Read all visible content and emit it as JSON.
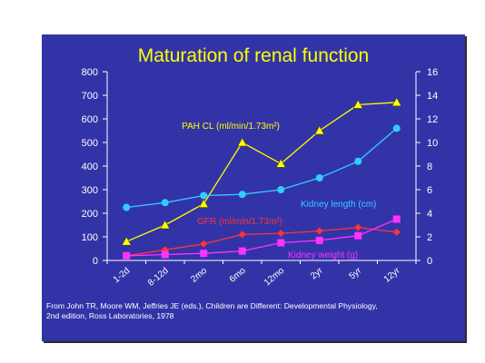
{
  "slide_bg": "#3333a8",
  "title": "Maturation of renal function",
  "credit": {
    "line1": "From John TR, Moore WM, Jeffries JE (eds.), Children are Different: Developmental Physiology,",
    "line2": "2nd edition, Ross Laboratories, 1978"
  },
  "chart_data": {
    "type": "line",
    "title": "Maturation of renal function",
    "categories": [
      "1-2d",
      "8-12d",
      "2mo",
      "6mo",
      "12mo",
      "2yr",
      "5yr",
      "12yr"
    ],
    "y_left": {
      "ylim": [
        0,
        800
      ],
      "ticks": [
        "0",
        "100",
        "200",
        "300",
        "400",
        "500",
        "600",
        "700",
        "800"
      ]
    },
    "y_right": {
      "ylim": [
        0,
        16
      ],
      "ticks": [
        "0",
        "2",
        "4",
        "6",
        "8",
        "10",
        "12",
        "14",
        "16"
      ]
    },
    "grid": false,
    "series": [
      {
        "name": "PAH CL (ml/min/1.73m²)",
        "axis": "left",
        "color": "#ffff00",
        "marker": "triangle",
        "values": [
          80,
          150,
          240,
          500,
          410,
          550,
          660,
          670
        ]
      },
      {
        "name": "Kidney length (cm)",
        "axis": "right",
        "color": "#33ccff",
        "marker": "circle",
        "values": [
          4.5,
          4.9,
          5.5,
          5.6,
          6.0,
          7.0,
          8.4,
          11.2
        ]
      },
      {
        "name": "GFR (ml/min/1.73m²)",
        "axis": "left",
        "color": "#ff3333",
        "marker": "diamond",
        "values": [
          20,
          45,
          70,
          110,
          115,
          125,
          140,
          120
        ]
      },
      {
        "name": "Kidney weight (g)",
        "axis": "right",
        "color": "#ff33ff",
        "marker": "square",
        "values": [
          0.4,
          0.5,
          0.6,
          0.8,
          1.5,
          1.7,
          2.1,
          3.5
        ]
      }
    ],
    "series_labels": [
      "PAH CL (ml/min/1.73m²)",
      "Kidney length (cm)",
      "GFR (ml/min/1.73m²)",
      "Kidney weight (g)"
    ]
  }
}
